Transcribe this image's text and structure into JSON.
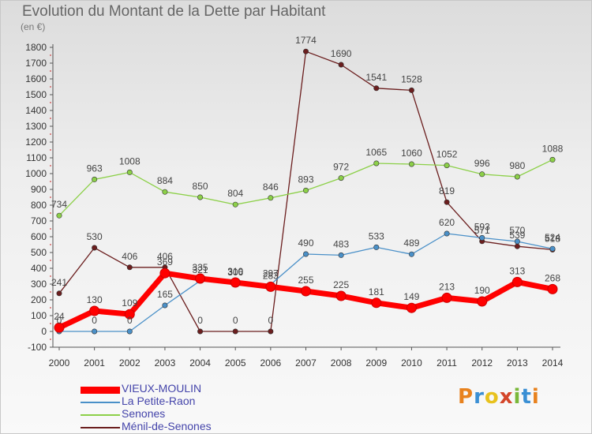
{
  "title": "Evolution du Montant de la Dette par Habitant",
  "subtitle": "(en €)",
  "logo": {
    "text": "Proxiti",
    "colors": [
      "#e8821e",
      "#3a8fd4",
      "#e8c21e",
      "#d4462a",
      "#7ab83a",
      "#3a8fd4",
      "#e8821e"
    ]
  },
  "chart_data": {
    "type": "line",
    "x": [
      "2000",
      "2001",
      "2002",
      "2003",
      "2004",
      "2005",
      "2006",
      "2007",
      "2008",
      "2009",
      "2010",
      "2011",
      "2012",
      "2013",
      "2014"
    ],
    "ylim": [
      -100,
      1800
    ],
    "yticks": [
      -100,
      0,
      100,
      200,
      300,
      400,
      500,
      600,
      700,
      800,
      900,
      1000,
      1100,
      1200,
      1300,
      1400,
      1500,
      1600,
      1700,
      1800
    ],
    "grid": false,
    "legend": "bottom-left",
    "series": [
      {
        "name": "VIEUX-MOULIN",
        "color": "#ff0000",
        "values": [
          24,
          130,
          109,
          369,
          335,
          310,
          283,
          255,
          225,
          181,
          149,
          213,
          190,
          313,
          268
        ]
      },
      {
        "name": "La Petite-Raon",
        "color": "#4a90c8",
        "values": [
          0,
          0,
          0,
          165,
          321,
          306,
          297,
          490,
          483,
          533,
          489,
          620,
          593,
          570,
          524
        ]
      },
      {
        "name": "Senones",
        "color": "#8cd048",
        "values": [
          734,
          963,
          1008,
          884,
          850,
          804,
          846,
          893,
          972,
          1065,
          1060,
          1052,
          996,
          980,
          1088
        ]
      },
      {
        "name": "Ménil-de-Senones",
        "color": "#6b1e1e",
        "values": [
          241,
          530,
          406,
          406,
          0,
          0,
          0,
          1774,
          1690,
          1541,
          1528,
          819,
          571,
          539,
          518
        ]
      }
    ]
  }
}
